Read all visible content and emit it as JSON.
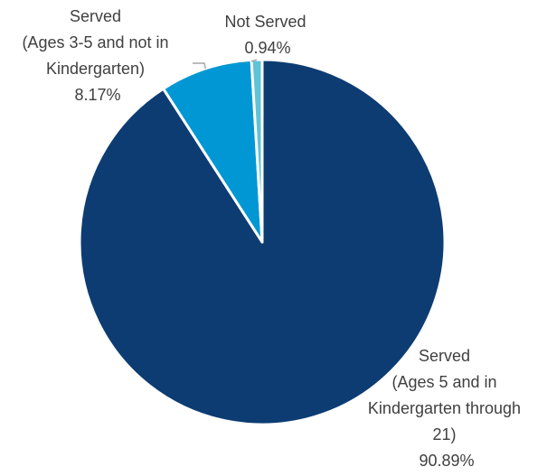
{
  "chart_data": {
    "type": "pie",
    "title": "",
    "slices": [
      {
        "name_lines": [
          "Served",
          "(Ages 5 and in",
          "Kindergarten through",
          "21)"
        ],
        "value": 90.89,
        "value_label": "90.89%",
        "color": "#0d3c73"
      },
      {
        "name_lines": [
          "Served",
          "(Ages 3-5 and not in",
          "Kindergarten)"
        ],
        "value": 8.17,
        "value_label": "8.17%",
        "color": "#0097d4"
      },
      {
        "name_lines": [
          "Not Served"
        ],
        "value": 0.94,
        "value_label": "0.94%",
        "color": "#5fc3d5"
      }
    ],
    "start_angle_deg": 0,
    "direction": "clockwise",
    "legend": "none",
    "label_color": "#404040",
    "leader_line_color": "#a6a6a6",
    "slice_border_color": "#ffffff"
  }
}
